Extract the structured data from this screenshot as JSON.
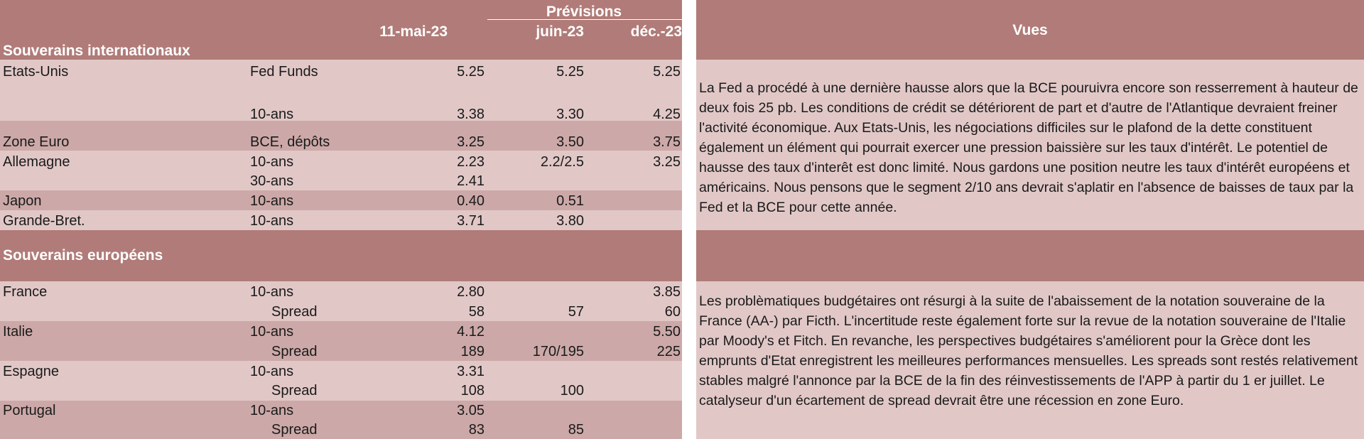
{
  "table": {
    "header": {
      "forecast_label": "Prévisions",
      "col_date": "11-mai-23",
      "col_f1": "juin-23",
      "col_f2": "déc.-23"
    },
    "section_international": "Souverains internationaux",
    "section_european": "Souverains européens",
    "rows": [
      {
        "country": "Etats-Unis",
        "instrument": "Fed Funds",
        "current": "5.25",
        "f1": "5.25",
        "f2": "5.25"
      },
      {
        "country": "",
        "instrument": "10-ans",
        "current": "3.38",
        "f1": "3.30",
        "f2": "4.25"
      },
      {
        "country": "Zone Euro",
        "instrument": "BCE, dépôts",
        "current": "3.25",
        "f1": "3.50",
        "f2": "3.75"
      },
      {
        "country": "Allemagne",
        "instrument": "10-ans",
        "current": "2.23",
        "f1": "2.2/2.5",
        "f2": "3.25"
      },
      {
        "country": "",
        "instrument": "30-ans",
        "current": "2.41",
        "f1": "",
        "f2": ""
      },
      {
        "country": "Japon",
        "instrument": "10-ans",
        "current": "0.40",
        "f1": "0.51",
        "f2": ""
      },
      {
        "country": "Grande-Bret.",
        "instrument": "10-ans",
        "current": "3.71",
        "f1": "3.80",
        "f2": ""
      },
      {
        "country": "France",
        "instrument": "10-ans",
        "current": "2.80",
        "f1": "",
        "f2": "3.85"
      },
      {
        "country": "",
        "instrument": "Spread",
        "current": "58",
        "f1": "57",
        "f2": "60"
      },
      {
        "country": "Italie",
        "instrument": "10-ans",
        "current": "4.12",
        "f1": "",
        "f2": "5.50"
      },
      {
        "country": "",
        "instrument": "Spread",
        "current": "189",
        "f1": "170/195",
        "f2": "225"
      },
      {
        "country": "Espagne",
        "instrument": "10-ans",
        "current": "3.31",
        "f1": "",
        "f2": ""
      },
      {
        "country": "",
        "instrument": "Spread",
        "current": "108",
        "f1": "100",
        "f2": ""
      },
      {
        "country": "Portugal",
        "instrument": "10-ans",
        "current": "3.05",
        "f1": "",
        "f2": ""
      },
      {
        "country": "",
        "instrument": "Spread",
        "current": "83",
        "f1": "85",
        "f2": ""
      }
    ]
  },
  "views": {
    "title": "Vues",
    "international_text": "La Fed a procédé à une dernière hausse alors que la BCE pouruivra encore son resserrement à hauteur de deux fois 25 pb. Les conditions de crédit se détériorent de part et d'autre de l'Atlantique devraient freiner l'activité économique. Aux Etats-Unis, les négociations difficiles sur le plafond de la dette constituent également un élément qui pourrait exercer une pression baissière sur les taux d'intérêt. Le potentiel de hausse des taux d'interêt est donc limité. Nous gardons une position neutre les taux d'intérêt européens et américains. Nous pensons que le segment 2/10 ans devrait s'aplatir en l'absence de baisses de taux par la Fed et la BCE pour cette année.",
    "european_text": "Les problèmatiques budgétaires ont résurgi à la suite de l'abaissement de la notation souveraine de la France (AA-) par Ficth. L'incertitude reste également forte sur la revue de la notation souveraine de l'Italie par Moody's et Fitch. En revanche, les perspectives budgétaires s'améliorent pour la Grèce dont les emprunts d'Etat enregistrent les meilleures performances mensuelles. Les spreads sont restés relativement stables malgré l'annonce par la BCE de la fin des réinvestissements de l'APP à partir du 1 er juillet. Le catalyseur d'un écartement de spread devrait être une récession en zone Euro."
  },
  "colors": {
    "header_bg": "#b07b78",
    "row_light": "#e1c8c7",
    "row_mid": "#cca9a8",
    "header_text": "#ffffff"
  }
}
